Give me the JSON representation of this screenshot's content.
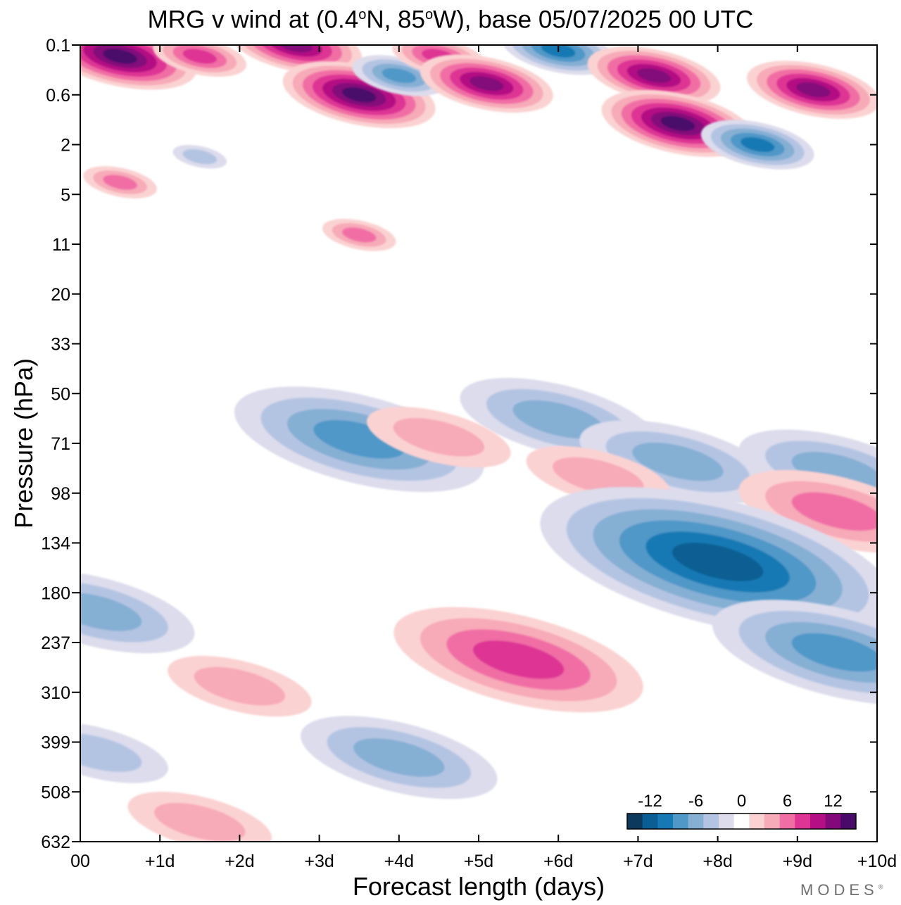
{
  "chart_data": {
    "type": "heatmap",
    "title": {
      "prefix": "MRG v wind at (0.4",
      "deg1": "o",
      "mid": "N, 85",
      "deg2": "o",
      "suffix": "W),  base 05/07/2025  00 UTC"
    },
    "xlabel": "Forecast length (days)",
    "ylabel": "Pressure (hPa)",
    "x_ticks": [
      "00",
      "+1d",
      "+2d",
      "+3d",
      "+4d",
      "+5d",
      "+6d",
      "+7d",
      "+8d",
      "+9d",
      "+10d"
    ],
    "x_range_days": [
      0,
      10
    ],
    "y_ticks": [
      "0.1",
      "0.6",
      "2",
      "5",
      "11",
      "20",
      "33",
      "50",
      "71",
      "98",
      "134",
      "180",
      "237",
      "310",
      "399",
      "508",
      "632"
    ],
    "colorbar": {
      "labels": [
        "-12",
        "-6",
        "0",
        "6",
        "12"
      ],
      "levels": [
        -14,
        -12,
        -10,
        -8,
        -6,
        -4,
        -2,
        0,
        2,
        4,
        6,
        8,
        10,
        12,
        14
      ],
      "colors": [
        "#0d3a5c",
        "#0b5e93",
        "#1779b4",
        "#4f98c8",
        "#86afd4",
        "#b3c4e2",
        "#dcdcec",
        "#ffffff",
        "#fbd2d2",
        "#f7aab8",
        "#f16ea5",
        "#de3594",
        "#b40f84",
        "#83087a",
        "#4a0a6a"
      ],
      "location": "bottom-right"
    },
    "contour_cells": [
      {
        "day": 0.5,
        "level": 0.15,
        "value": 14
      },
      {
        "day": 1.5,
        "level": 0.15,
        "value": 8
      },
      {
        "day": 2.7,
        "level": 0.1,
        "value": 12
      },
      {
        "day": 3.5,
        "level": 0.6,
        "value": 13
      },
      {
        "day": 4.0,
        "level": 0.3,
        "value": -8
      },
      {
        "day": 4.5,
        "level": 0.15,
        "value": 8
      },
      {
        "day": 5.1,
        "level": 0.4,
        "value": 12
      },
      {
        "day": 6.0,
        "level": 0.12,
        "value": -10
      },
      {
        "day": 7.2,
        "level": 0.3,
        "value": 12
      },
      {
        "day": 7.5,
        "level": 1.2,
        "value": 13
      },
      {
        "day": 8.5,
        "level": 2.0,
        "value": -10
      },
      {
        "day": 9.2,
        "level": 0.5,
        "value": 11
      },
      {
        "day": 0.5,
        "level": 4.0,
        "value": 6
      },
      {
        "day": 1.5,
        "level": 2.5,
        "value": -4
      },
      {
        "day": 3.5,
        "level": 9.5,
        "value": 6
      },
      {
        "day": 3.5,
        "level": 69,
        "value": -7
      },
      {
        "day": 6.0,
        "level": 60,
        "value": -5
      },
      {
        "day": 7.5,
        "level": 80,
        "value": -5
      },
      {
        "day": 9.5,
        "level": 85,
        "value": -6
      },
      {
        "day": 4.5,
        "level": 68,
        "value": 4
      },
      {
        "day": 6.5,
        "level": 88,
        "value": 4
      },
      {
        "day": 9.5,
        "level": 110,
        "value": 5
      },
      {
        "day": 8.0,
        "level": 150,
        "value": -12
      },
      {
        "day": 9.5,
        "level": 250,
        "value": -7
      },
      {
        "day": 5.5,
        "level": 260,
        "value": 8
      },
      {
        "day": 2.0,
        "level": 300,
        "value": 3
      },
      {
        "day": 4.0,
        "level": 430,
        "value": -6
      },
      {
        "day": 0.2,
        "level": 420,
        "value": -4
      },
      {
        "day": 0.2,
        "level": 200,
        "value": -5
      },
      {
        "day": 1.5,
        "level": 580,
        "value": 3
      }
    ]
  },
  "branding": {
    "logo_text": "MODES",
    "mark": "®"
  }
}
